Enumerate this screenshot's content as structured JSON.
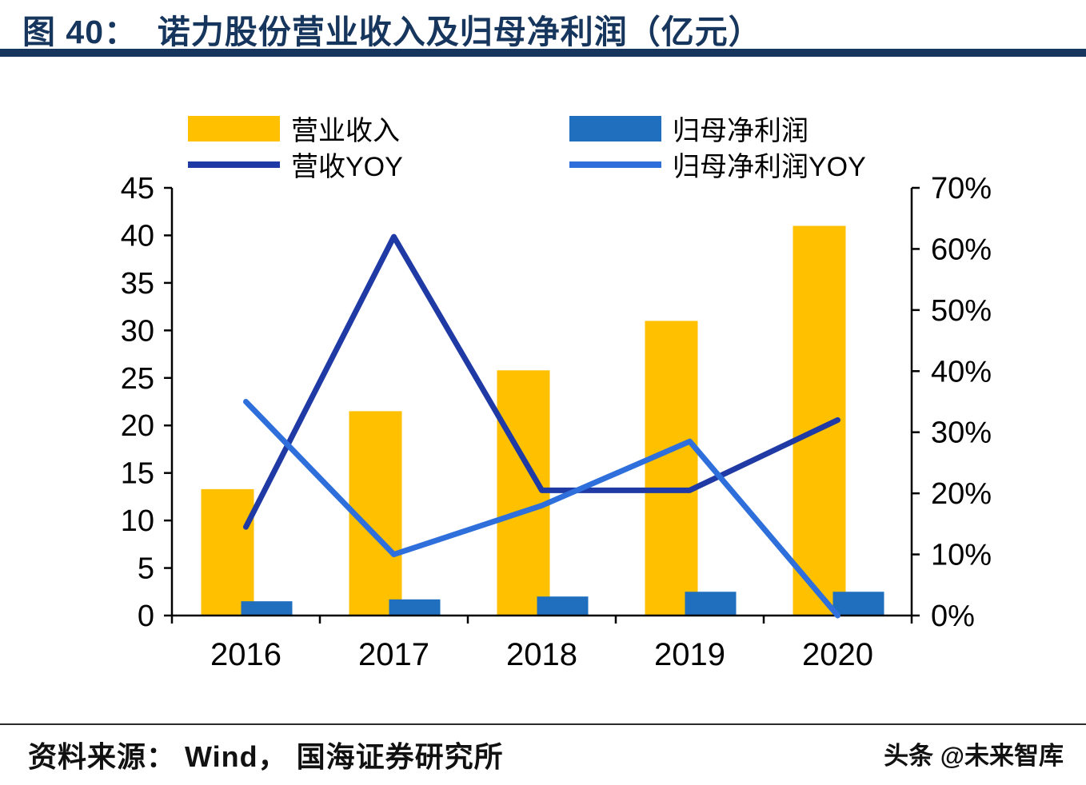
{
  "header": {
    "figure_label": "图 40",
    "title": "图 40：  诺力股份营业收入及归母净利润（亿元）"
  },
  "footer": {
    "source": "资料来源： Wind， 国海证券研究所",
    "watermark": "头条 @未来智库"
  },
  "colors": {
    "title_navy": "#17365D",
    "revenue_bar": "#FFC000",
    "profit_bar": "#1F6FBE",
    "revenue_yoy_line": "#203AA5",
    "profit_yoy_line": "#2E6FDB",
    "axis": "#000000"
  },
  "chart_data": {
    "type": "bar+line combo",
    "title": "诺力股份营业收入及归母净利润（亿元）",
    "categories": [
      "2016",
      "2017",
      "2018",
      "2019",
      "2020"
    ],
    "bar_series": [
      {
        "name": "营业收入",
        "axis": "left",
        "unit": "亿元",
        "color": "#FFC000",
        "values": [
          13.3,
          21.5,
          25.8,
          31.0,
          41.0
        ]
      },
      {
        "name": "归母净利润",
        "axis": "left",
        "unit": "亿元",
        "color": "#1F6FBE",
        "values": [
          1.5,
          1.7,
          2.0,
          2.5,
          2.5
        ]
      }
    ],
    "line_series": [
      {
        "name": "营收YOY",
        "axis": "right",
        "unit": "%",
        "color": "#203AA5",
        "values": [
          14.5,
          62,
          20.5,
          20.5,
          32
        ]
      },
      {
        "name": "归母净利润YOY",
        "axis": "right",
        "unit": "%",
        "color": "#2E6FDB",
        "values": [
          35,
          10,
          18,
          28.5,
          0
        ]
      }
    ],
    "left_axis": {
      "min": 0,
      "max": 45,
      "step": 5,
      "labels": [
        "0",
        "5",
        "10",
        "15",
        "20",
        "25",
        "30",
        "35",
        "40",
        "45"
      ]
    },
    "right_axis": {
      "min": 0,
      "max": 70,
      "step": 10,
      "labels": [
        "0%",
        "10%",
        "20%",
        "30%",
        "40%",
        "50%",
        "60%",
        "70%"
      ]
    },
    "legend_position": "top",
    "grid": false
  }
}
